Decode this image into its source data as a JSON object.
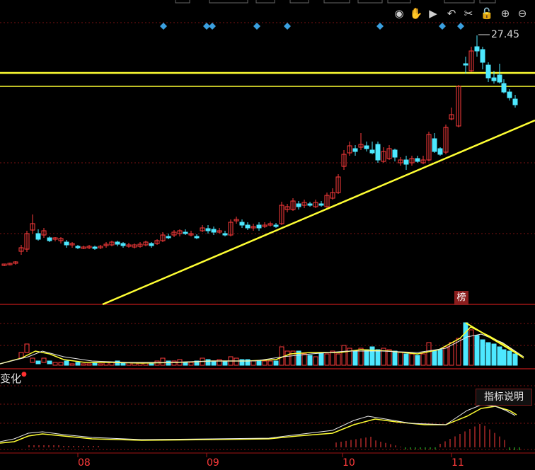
{
  "toolbar": {
    "icons": [
      "eye-icon",
      "hand-icon",
      "play-icon",
      "undo-icon",
      "scissors-icon",
      "lock-icon",
      "zoom-in-icon",
      "zoom-out-icon"
    ],
    "glyphs": [
      "◉",
      "✋",
      "▶",
      "↶",
      "✂",
      "🔓",
      "⊕",
      "⊖"
    ]
  },
  "price_panel": {
    "high_label": "27.45",
    "bang_badge": "榜",
    "colors": {
      "up": "#ff3b3b",
      "down": "#4de8ff",
      "trend_line": "#ffff33",
      "grid": "#7a1212"
    }
  },
  "indicator_panel": {
    "title": "变化",
    "help_button": "指标说明"
  },
  "x_axis": {
    "months": [
      "08",
      "09",
      "10",
      "11"
    ]
  }
}
